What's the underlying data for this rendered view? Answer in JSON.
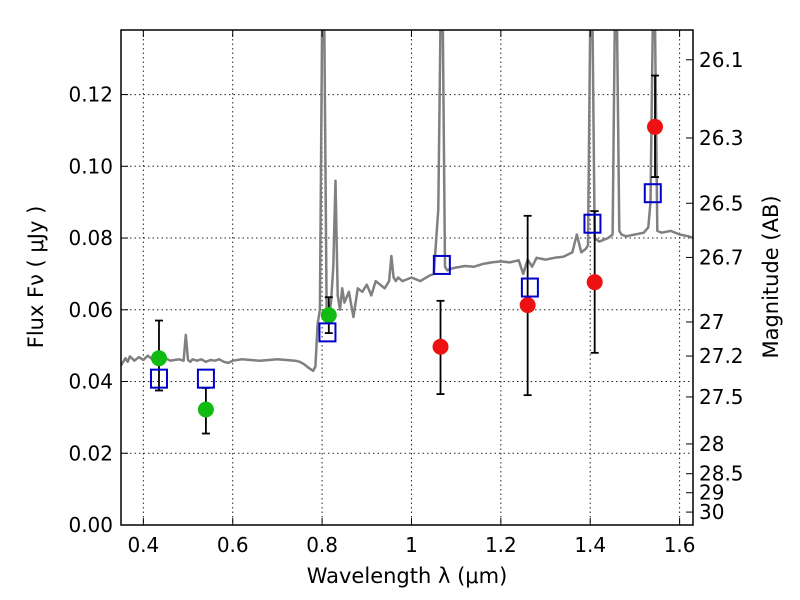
{
  "chart_data": {
    "type": "scatter",
    "title": "",
    "xlabel": "Wavelength  λ (μm)",
    "ylabel": "Flux  Fν  ( μJy )",
    "ylabel_right": "Magnitude (AB)",
    "xlim": [
      0.35,
      1.63
    ],
    "ylim": [
      0.0,
      0.138
    ],
    "grid": true,
    "x_ticks": [
      0.4,
      0.6,
      0.8,
      1.0,
      1.2,
      1.4,
      1.6
    ],
    "x_tick_labels": [
      "0.4",
      "0.6",
      "0.8",
      "1",
      "1.2",
      "1.4",
      "1.6"
    ],
    "y_ticks": [
      0.0,
      0.02,
      0.04,
      0.06,
      0.08,
      0.1,
      0.12
    ],
    "y_tick_labels": [
      "0.00",
      "0.02",
      "0.04",
      "0.06",
      "0.08",
      "0.10",
      "0.12"
    ],
    "right_ticks": [
      {
        "label": "26.1",
        "flux": 0.1297
      },
      {
        "label": "26.3",
        "flux": 0.1079
      },
      {
        "label": "26.5",
        "flux": 0.0897
      },
      {
        "label": "26.7",
        "flux": 0.0746
      },
      {
        "label": "27",
        "flux": 0.0566
      },
      {
        "label": "27.2",
        "flux": 0.0471
      },
      {
        "label": "27.5",
        "flux": 0.0357
      },
      {
        "label": "28",
        "flux": 0.0226
      },
      {
        "label": "28.5",
        "flux": 0.0143
      },
      {
        "label": "29",
        "flux": 0.009
      },
      {
        "label": "30",
        "flux": 0.0036
      }
    ],
    "colors": {
      "spectrum": "#808080",
      "green_points": "#11bb11",
      "red_points": "#ee1111",
      "model_boxes": "#0000cc",
      "errorbars": "#000000"
    },
    "series": [
      {
        "kind": "points",
        "color_key": "green_points",
        "points": [
          {
            "x": 0.435,
            "y": 0.0465,
            "err_low": 0.0375,
            "err_high": 0.057
          },
          {
            "x": 0.54,
            "y": 0.0322,
            "err_low": 0.0255,
            "err_high": 0.0382
          },
          {
            "x": 0.815,
            "y": 0.0585,
            "err_low": 0.0535,
            "err_high": 0.0635
          }
        ]
      },
      {
        "kind": "points",
        "color_key": "red_points",
        "points": [
          {
            "x": 1.065,
            "y": 0.0497,
            "err_low": 0.0365,
            "err_high": 0.0625
          },
          {
            "x": 1.26,
            "y": 0.0613,
            "err_low": 0.0362,
            "err_high": 0.0862
          },
          {
            "x": 1.41,
            "y": 0.0677,
            "err_low": 0.048,
            "err_high": 0.0875
          },
          {
            "x": 1.545,
            "y": 0.111,
            "err_low": 0.097,
            "err_high": 0.1253
          }
        ]
      },
      {
        "kind": "boxes",
        "color_key": "model_boxes",
        "points": [
          {
            "x": 0.435,
            "y": 0.0408
          },
          {
            "x": 0.54,
            "y": 0.0408
          },
          {
            "x": 0.812,
            "y": 0.0537
          },
          {
            "x": 1.068,
            "y": 0.0725
          },
          {
            "x": 1.265,
            "y": 0.0662
          },
          {
            "x": 1.405,
            "y": 0.084
          },
          {
            "x": 1.54,
            "y": 0.0925
          }
        ]
      },
      {
        "kind": "spectrum",
        "color_key": "spectrum",
        "x": [
          0.35,
          0.36,
          0.365,
          0.37,
          0.38,
          0.39,
          0.4,
          0.41,
          0.42,
          0.43,
          0.44,
          0.45,
          0.46,
          0.47,
          0.48,
          0.49,
          0.495,
          0.5,
          0.505,
          0.51,
          0.52,
          0.53,
          0.54,
          0.55,
          0.56,
          0.57,
          0.58,
          0.59,
          0.6,
          0.62,
          0.64,
          0.66,
          0.68,
          0.7,
          0.72,
          0.74,
          0.75,
          0.76,
          0.77,
          0.78,
          0.785,
          0.79,
          0.795,
          0.8,
          0.805,
          0.81,
          0.815,
          0.82,
          0.825,
          0.83,
          0.835,
          0.84,
          0.845,
          0.85,
          0.86,
          0.87,
          0.88,
          0.89,
          0.9,
          0.91,
          0.92,
          0.93,
          0.94,
          0.95,
          0.955,
          0.96,
          0.965,
          0.97,
          0.98,
          1.0,
          1.02,
          1.04,
          1.05,
          1.06,
          1.065,
          1.07,
          1.075,
          1.08,
          1.09,
          1.1,
          1.12,
          1.14,
          1.16,
          1.18,
          1.2,
          1.22,
          1.24,
          1.25,
          1.26,
          1.27,
          1.28,
          1.3,
          1.32,
          1.34,
          1.36,
          1.37,
          1.38,
          1.39,
          1.395,
          1.4,
          1.405,
          1.41,
          1.42,
          1.43,
          1.44,
          1.45,
          1.455,
          1.46,
          1.465,
          1.47,
          1.48,
          1.5,
          1.52,
          1.53,
          1.535,
          1.54,
          1.545,
          1.55,
          1.56,
          1.58,
          1.6,
          1.62,
          1.63
        ],
        "y": [
          0.0445,
          0.0465,
          0.0455,
          0.047,
          0.0458,
          0.0468,
          0.046,
          0.0472,
          0.0462,
          0.0468,
          0.0452,
          0.0465,
          0.0458,
          0.046,
          0.0462,
          0.0458,
          0.053,
          0.046,
          0.0455,
          0.0462,
          0.0458,
          0.0462,
          0.0455,
          0.046,
          0.0458,
          0.0462,
          0.0455,
          0.0452,
          0.0458,
          0.0462,
          0.046,
          0.0458,
          0.046,
          0.0462,
          0.046,
          0.0458,
          0.0455,
          0.0448,
          0.0438,
          0.043,
          0.0442,
          0.056,
          0.06,
          0.14,
          0.14,
          0.06,
          0.058,
          0.062,
          0.072,
          0.096,
          0.064,
          0.06,
          0.066,
          0.062,
          0.065,
          0.058,
          0.066,
          0.065,
          0.067,
          0.064,
          0.068,
          0.067,
          0.066,
          0.068,
          0.075,
          0.069,
          0.068,
          0.069,
          0.068,
          0.069,
          0.068,
          0.0695,
          0.07,
          0.088,
          0.14,
          0.14,
          0.072,
          0.071,
          0.0715,
          0.0718,
          0.0722,
          0.072,
          0.0728,
          0.0732,
          0.0735,
          0.0732,
          0.0738,
          0.07,
          0.074,
          0.072,
          0.0745,
          0.074,
          0.0745,
          0.0748,
          0.076,
          0.081,
          0.076,
          0.077,
          0.078,
          0.14,
          0.14,
          0.08,
          0.079,
          0.0795,
          0.08,
          0.081,
          0.14,
          0.14,
          0.082,
          0.081,
          0.0805,
          0.081,
          0.0815,
          0.083,
          0.09,
          0.14,
          0.14,
          0.082,
          0.0815,
          0.082,
          0.081,
          0.0805,
          0.08
        ]
      }
    ]
  }
}
